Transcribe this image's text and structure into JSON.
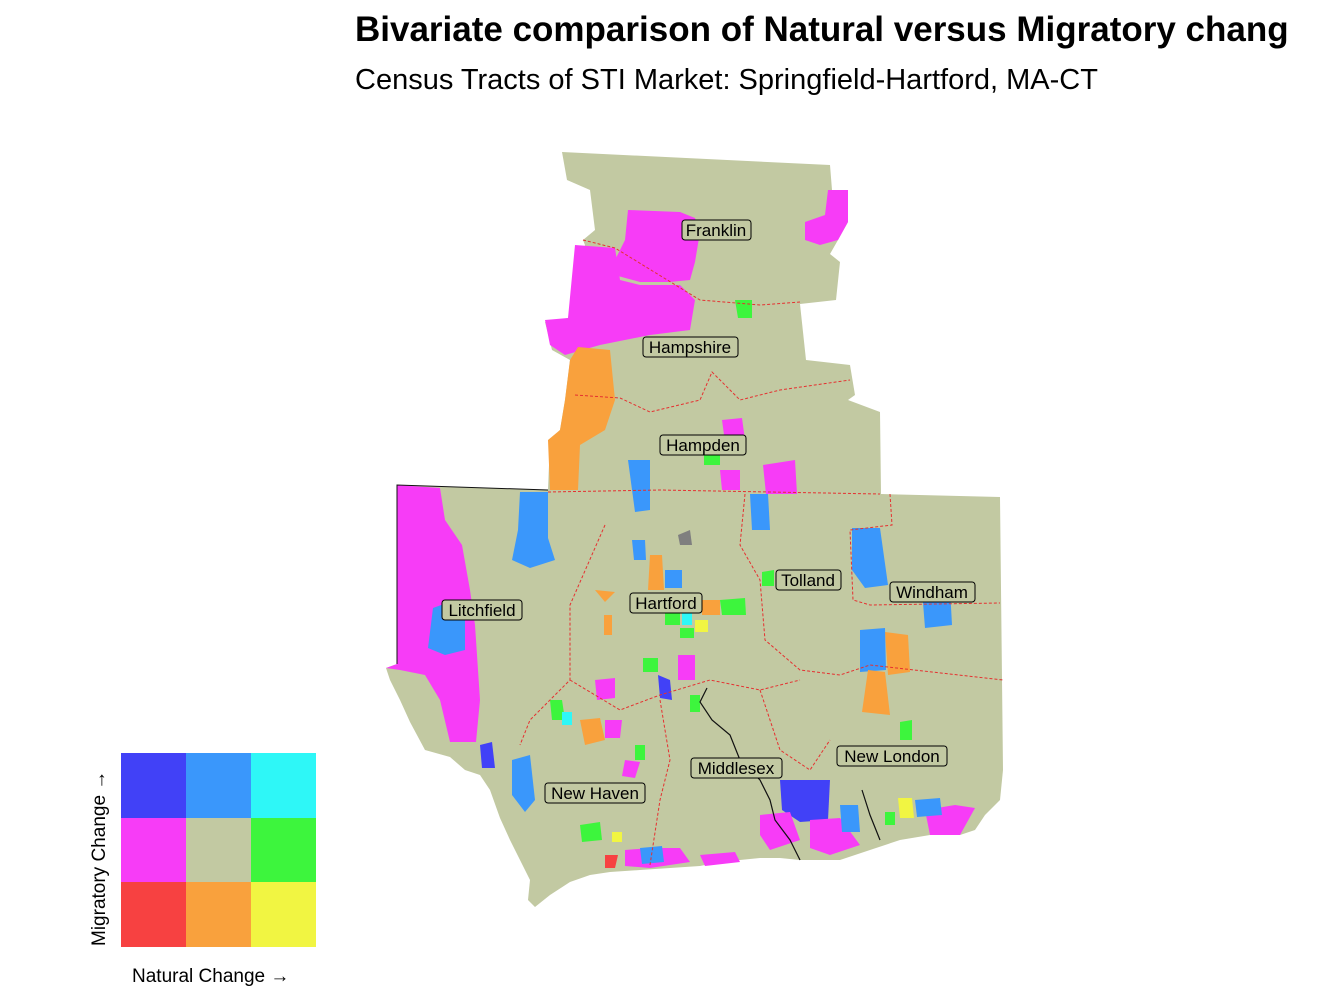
{
  "title": "Bivariate comparison of Natural versus Migratory chang",
  "subtitle": "Census Tracts of STI Market: Springfield-Hartford, MA-CT",
  "counties": [
    {
      "name": "Franklin"
    },
    {
      "name": "Hampshire"
    },
    {
      "name": "Hampden"
    },
    {
      "name": "Litchfield"
    },
    {
      "name": "Hartford"
    },
    {
      "name": "Tolland"
    },
    {
      "name": "Windham"
    },
    {
      "name": "Middlesex"
    },
    {
      "name": "New London"
    },
    {
      "name": "New Haven"
    }
  ],
  "legend": {
    "x_label": "Natural Change →",
    "y_label": "Migratory Change →",
    "colors": [
      [
        "#4141f7",
        "#3a97fb",
        "#2ef7f7"
      ],
      [
        "#f73cf7",
        "#c2c9a2",
        "#3df53d"
      ],
      [
        "#f74141",
        "#f9a13d",
        "#f1f542"
      ]
    ]
  },
  "colors": {
    "base": "#c2c9a2",
    "county_border": "#e53030",
    "missing": "#7f7f7f"
  }
}
